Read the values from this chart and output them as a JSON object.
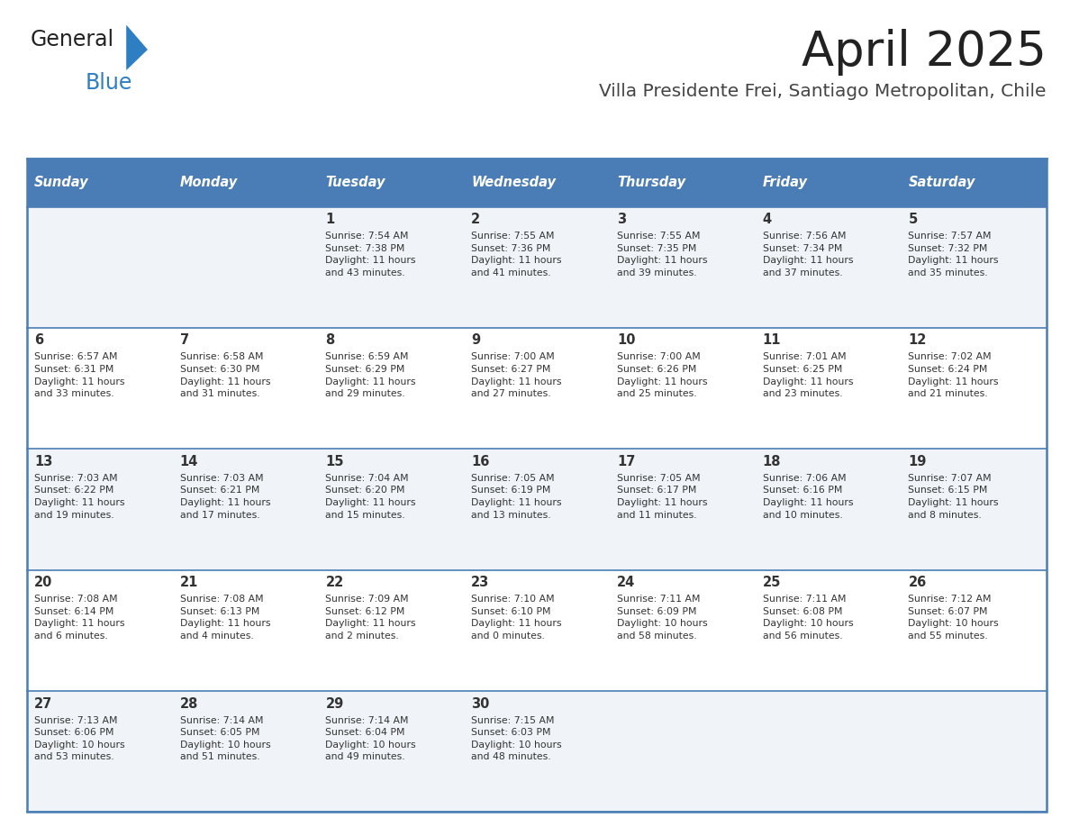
{
  "title": "April 2025",
  "subtitle": "Villa Presidente Frei, Santiago Metropolitan, Chile",
  "header_bg_color": "#4a7db5",
  "header_text_color": "#ffffff",
  "row_bg_colors": [
    "#f0f4f8",
    "#ffffff",
    "#f0f4f8",
    "#ffffff",
    "#f0f4f8"
  ],
  "border_color": "#4a7db5",
  "day_num_color": "#333333",
  "info_text_color": "#333333",
  "title_color": "#222222",
  "subtitle_color": "#444444",
  "logo_general_color": "#222222",
  "logo_blue_color": "#2e7ec4",
  "logo_triangle_color": "#2e7ec4",
  "days_of_week": [
    "Sunday",
    "Monday",
    "Tuesday",
    "Wednesday",
    "Thursday",
    "Friday",
    "Saturday"
  ],
  "calendar": [
    [
      {
        "day": "",
        "info": ""
      },
      {
        "day": "",
        "info": ""
      },
      {
        "day": "1",
        "info": "Sunrise: 7:54 AM\nSunset: 7:38 PM\nDaylight: 11 hours\nand 43 minutes."
      },
      {
        "day": "2",
        "info": "Sunrise: 7:55 AM\nSunset: 7:36 PM\nDaylight: 11 hours\nand 41 minutes."
      },
      {
        "day": "3",
        "info": "Sunrise: 7:55 AM\nSunset: 7:35 PM\nDaylight: 11 hours\nand 39 minutes."
      },
      {
        "day": "4",
        "info": "Sunrise: 7:56 AM\nSunset: 7:34 PM\nDaylight: 11 hours\nand 37 minutes."
      },
      {
        "day": "5",
        "info": "Sunrise: 7:57 AM\nSunset: 7:32 PM\nDaylight: 11 hours\nand 35 minutes."
      }
    ],
    [
      {
        "day": "6",
        "info": "Sunrise: 6:57 AM\nSunset: 6:31 PM\nDaylight: 11 hours\nand 33 minutes."
      },
      {
        "day": "7",
        "info": "Sunrise: 6:58 AM\nSunset: 6:30 PM\nDaylight: 11 hours\nand 31 minutes."
      },
      {
        "day": "8",
        "info": "Sunrise: 6:59 AM\nSunset: 6:29 PM\nDaylight: 11 hours\nand 29 minutes."
      },
      {
        "day": "9",
        "info": "Sunrise: 7:00 AM\nSunset: 6:27 PM\nDaylight: 11 hours\nand 27 minutes."
      },
      {
        "day": "10",
        "info": "Sunrise: 7:00 AM\nSunset: 6:26 PM\nDaylight: 11 hours\nand 25 minutes."
      },
      {
        "day": "11",
        "info": "Sunrise: 7:01 AM\nSunset: 6:25 PM\nDaylight: 11 hours\nand 23 minutes."
      },
      {
        "day": "12",
        "info": "Sunrise: 7:02 AM\nSunset: 6:24 PM\nDaylight: 11 hours\nand 21 minutes."
      }
    ],
    [
      {
        "day": "13",
        "info": "Sunrise: 7:03 AM\nSunset: 6:22 PM\nDaylight: 11 hours\nand 19 minutes."
      },
      {
        "day": "14",
        "info": "Sunrise: 7:03 AM\nSunset: 6:21 PM\nDaylight: 11 hours\nand 17 minutes."
      },
      {
        "day": "15",
        "info": "Sunrise: 7:04 AM\nSunset: 6:20 PM\nDaylight: 11 hours\nand 15 minutes."
      },
      {
        "day": "16",
        "info": "Sunrise: 7:05 AM\nSunset: 6:19 PM\nDaylight: 11 hours\nand 13 minutes."
      },
      {
        "day": "17",
        "info": "Sunrise: 7:05 AM\nSunset: 6:17 PM\nDaylight: 11 hours\nand 11 minutes."
      },
      {
        "day": "18",
        "info": "Sunrise: 7:06 AM\nSunset: 6:16 PM\nDaylight: 11 hours\nand 10 minutes."
      },
      {
        "day": "19",
        "info": "Sunrise: 7:07 AM\nSunset: 6:15 PM\nDaylight: 11 hours\nand 8 minutes."
      }
    ],
    [
      {
        "day": "20",
        "info": "Sunrise: 7:08 AM\nSunset: 6:14 PM\nDaylight: 11 hours\nand 6 minutes."
      },
      {
        "day": "21",
        "info": "Sunrise: 7:08 AM\nSunset: 6:13 PM\nDaylight: 11 hours\nand 4 minutes."
      },
      {
        "day": "22",
        "info": "Sunrise: 7:09 AM\nSunset: 6:12 PM\nDaylight: 11 hours\nand 2 minutes."
      },
      {
        "day": "23",
        "info": "Sunrise: 7:10 AM\nSunset: 6:10 PM\nDaylight: 11 hours\nand 0 minutes."
      },
      {
        "day": "24",
        "info": "Sunrise: 7:11 AM\nSunset: 6:09 PM\nDaylight: 10 hours\nand 58 minutes."
      },
      {
        "day": "25",
        "info": "Sunrise: 7:11 AM\nSunset: 6:08 PM\nDaylight: 10 hours\nand 56 minutes."
      },
      {
        "day": "26",
        "info": "Sunrise: 7:12 AM\nSunset: 6:07 PM\nDaylight: 10 hours\nand 55 minutes."
      }
    ],
    [
      {
        "day": "27",
        "info": "Sunrise: 7:13 AM\nSunset: 6:06 PM\nDaylight: 10 hours\nand 53 minutes."
      },
      {
        "day": "28",
        "info": "Sunrise: 7:14 AM\nSunset: 6:05 PM\nDaylight: 10 hours\nand 51 minutes."
      },
      {
        "day": "29",
        "info": "Sunrise: 7:14 AM\nSunset: 6:04 PM\nDaylight: 10 hours\nand 49 minutes."
      },
      {
        "day": "30",
        "info": "Sunrise: 7:15 AM\nSunset: 6:03 PM\nDaylight: 10 hours\nand 48 minutes."
      },
      {
        "day": "",
        "info": ""
      },
      {
        "day": "",
        "info": ""
      },
      {
        "day": "",
        "info": ""
      }
    ]
  ],
  "figsize": [
    11.88,
    9.18
  ],
  "dpi": 100
}
